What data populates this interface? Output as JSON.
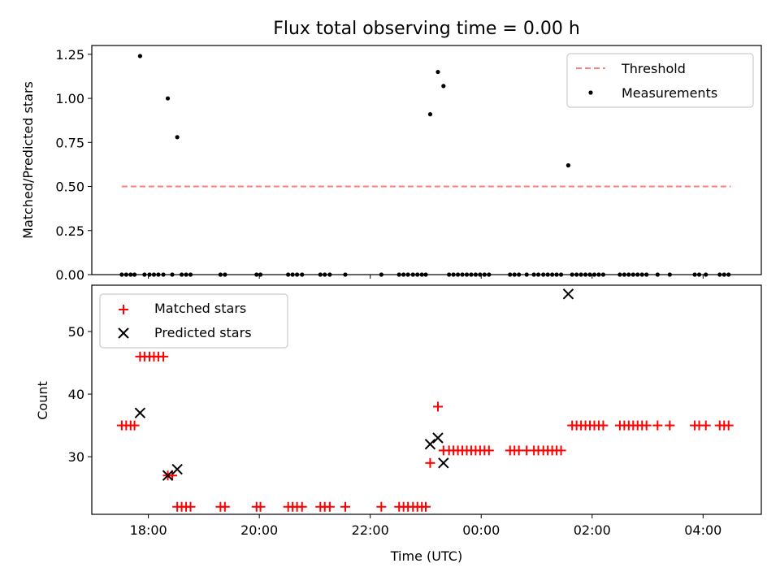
{
  "chart_data": [
    {
      "type": "scatter",
      "title": "Flux total observing time = 0.00 h",
      "xlabel": "",
      "ylabel": "Matched/Predicted stars",
      "xlim": [
        16.98,
        29.05
      ],
      "ylim": [
        0,
        1.3
      ],
      "yticks": [
        0,
        0.25,
        0.5,
        0.75,
        1.0,
        1.25
      ],
      "ytick_labels": [
        "0.00",
        "0.25",
        "0.50",
        "0.75",
        "1.00",
        "1.25"
      ],
      "xticks": [
        18,
        20,
        22,
        24,
        26,
        28
      ],
      "grid": false,
      "legend_position": "upper right",
      "threshold": {
        "name": "Threshold",
        "value": 0.5,
        "x_range": [
          17.52,
          28.5
        ],
        "color": "#ff7f7f",
        "style": "dashed"
      },
      "series": [
        {
          "name": "Measurements",
          "color": "#000000",
          "marker": "dot",
          "points": [
            [
              17.85,
              1.24
            ],
            [
              18.35,
              1.0
            ],
            [
              18.52,
              0.78
            ],
            [
              23.08,
              0.91
            ],
            [
              23.22,
              1.15
            ],
            [
              23.32,
              1.07
            ],
            [
              25.57,
              0.62
            ],
            [
              17.52,
              0
            ],
            [
              17.6,
              0
            ],
            [
              17.68,
              0
            ],
            [
              17.75,
              0
            ],
            [
              17.93,
              0
            ],
            [
              18.02,
              0
            ],
            [
              18.1,
              0
            ],
            [
              18.18,
              0
            ],
            [
              18.27,
              0
            ],
            [
              18.43,
              0
            ],
            [
              18.6,
              0
            ],
            [
              18.68,
              0
            ],
            [
              18.76,
              0
            ],
            [
              19.3,
              0
            ],
            [
              19.38,
              0
            ],
            [
              19.95,
              0
            ],
            [
              20.02,
              0
            ],
            [
              20.52,
              0
            ],
            [
              20.6,
              0
            ],
            [
              20.68,
              0
            ],
            [
              20.77,
              0
            ],
            [
              21.1,
              0
            ],
            [
              21.18,
              0
            ],
            [
              21.27,
              0
            ],
            [
              21.55,
              0
            ],
            [
              22.2,
              0
            ],
            [
              22.52,
              0
            ],
            [
              22.6,
              0
            ],
            [
              22.68,
              0
            ],
            [
              22.77,
              0
            ],
            [
              22.85,
              0
            ],
            [
              22.93,
              0
            ],
            [
              23.0,
              0
            ],
            [
              23.42,
              0
            ],
            [
              23.5,
              0
            ],
            [
              23.58,
              0
            ],
            [
              23.66,
              0
            ],
            [
              23.74,
              0
            ],
            [
              23.82,
              0
            ],
            [
              23.9,
              0
            ],
            [
              23.98,
              0
            ],
            [
              24.06,
              0
            ],
            [
              24.14,
              0
            ],
            [
              24.52,
              0
            ],
            [
              24.6,
              0
            ],
            [
              24.68,
              0
            ],
            [
              24.82,
              0
            ],
            [
              24.95,
              0
            ],
            [
              25.03,
              0
            ],
            [
              25.12,
              0
            ],
            [
              25.2,
              0
            ],
            [
              25.28,
              0
            ],
            [
              25.36,
              0
            ],
            [
              25.44,
              0
            ],
            [
              25.64,
              0
            ],
            [
              25.72,
              0
            ],
            [
              25.8,
              0
            ],
            [
              25.88,
              0
            ],
            [
              25.96,
              0
            ],
            [
              26.04,
              0
            ],
            [
              26.12,
              0
            ],
            [
              26.2,
              0
            ],
            [
              26.5,
              0
            ],
            [
              26.58,
              0
            ],
            [
              26.66,
              0
            ],
            [
              26.74,
              0
            ],
            [
              26.82,
              0
            ],
            [
              26.9,
              0
            ],
            [
              26.98,
              0
            ],
            [
              27.18,
              0
            ],
            [
              27.4,
              0
            ],
            [
              27.85,
              0
            ],
            [
              27.93,
              0
            ],
            [
              28.05,
              0
            ],
            [
              28.3,
              0
            ],
            [
              28.38,
              0
            ],
            [
              28.46,
              0
            ]
          ]
        }
      ]
    },
    {
      "type": "scatter",
      "title": "",
      "xlabel": "Time (UTC)",
      "ylabel": "Count",
      "xlim": [
        16.98,
        29.05
      ],
      "ylim": [
        20.8,
        57.4
      ],
      "yticks": [
        30,
        40,
        50
      ],
      "ytick_labels": [
        "30",
        "40",
        "50"
      ],
      "xticks": [
        18,
        20,
        22,
        24,
        26,
        28
      ],
      "xtick_labels": [
        "18:00",
        "20:00",
        "22:00",
        "00:00",
        "02:00",
        "04:00"
      ],
      "grid": false,
      "legend_position": "upper left",
      "series": [
        {
          "name": "Matched stars",
          "color": "#ff0000",
          "marker": "plus",
          "points": [
            [
              17.52,
              35
            ],
            [
              17.6,
              35
            ],
            [
              17.68,
              35
            ],
            [
              17.75,
              35
            ],
            [
              17.85,
              46
            ],
            [
              17.93,
              46
            ],
            [
              18.02,
              46
            ],
            [
              18.1,
              46
            ],
            [
              18.18,
              46
            ],
            [
              18.27,
              46
            ],
            [
              18.35,
              27
            ],
            [
              18.43,
              27
            ],
            [
              18.52,
              22
            ],
            [
              18.6,
              22
            ],
            [
              18.68,
              22
            ],
            [
              18.76,
              22
            ],
            [
              19.3,
              22
            ],
            [
              19.38,
              22
            ],
            [
              19.95,
              22
            ],
            [
              20.02,
              22
            ],
            [
              20.52,
              22
            ],
            [
              20.6,
              22
            ],
            [
              20.68,
              22
            ],
            [
              20.77,
              22
            ],
            [
              21.1,
              22
            ],
            [
              21.18,
              22
            ],
            [
              21.27,
              22
            ],
            [
              21.55,
              22
            ],
            [
              22.2,
              22
            ],
            [
              22.52,
              22
            ],
            [
              22.6,
              22
            ],
            [
              22.68,
              22
            ],
            [
              22.77,
              22
            ],
            [
              22.85,
              22
            ],
            [
              22.93,
              22
            ],
            [
              23.0,
              22
            ],
            [
              23.08,
              29
            ],
            [
              23.22,
              38
            ],
            [
              23.32,
              31
            ],
            [
              23.42,
              31
            ],
            [
              23.5,
              31
            ],
            [
              23.58,
              31
            ],
            [
              23.66,
              31
            ],
            [
              23.74,
              31
            ],
            [
              23.82,
              31
            ],
            [
              23.9,
              31
            ],
            [
              23.98,
              31
            ],
            [
              24.06,
              31
            ],
            [
              24.14,
              31
            ],
            [
              24.52,
              31
            ],
            [
              24.6,
              31
            ],
            [
              24.68,
              31
            ],
            [
              24.82,
              31
            ],
            [
              24.95,
              31
            ],
            [
              25.03,
              31
            ],
            [
              25.12,
              31
            ],
            [
              25.2,
              31
            ],
            [
              25.28,
              31
            ],
            [
              25.36,
              31
            ],
            [
              25.44,
              31
            ],
            [
              25.64,
              35
            ],
            [
              25.72,
              35
            ],
            [
              25.8,
              35
            ],
            [
              25.88,
              35
            ],
            [
              25.96,
              35
            ],
            [
              26.04,
              35
            ],
            [
              26.12,
              35
            ],
            [
              26.2,
              35
            ],
            [
              26.5,
              35
            ],
            [
              26.58,
              35
            ],
            [
              26.66,
              35
            ],
            [
              26.74,
              35
            ],
            [
              26.82,
              35
            ],
            [
              26.9,
              35
            ],
            [
              26.98,
              35
            ],
            [
              27.18,
              35
            ],
            [
              27.4,
              35
            ],
            [
              27.85,
              35
            ],
            [
              27.93,
              35
            ],
            [
              28.05,
              35
            ],
            [
              28.3,
              35
            ],
            [
              28.38,
              35
            ],
            [
              28.46,
              35
            ]
          ]
        },
        {
          "name": "Predicted stars",
          "color": "#000000",
          "marker": "x",
          "points": [
            [
              17.85,
              37
            ],
            [
              18.35,
              27
            ],
            [
              18.52,
              28
            ],
            [
              23.08,
              32
            ],
            [
              23.22,
              33
            ],
            [
              23.32,
              29
            ],
            [
              25.57,
              56
            ]
          ]
        }
      ]
    }
  ]
}
